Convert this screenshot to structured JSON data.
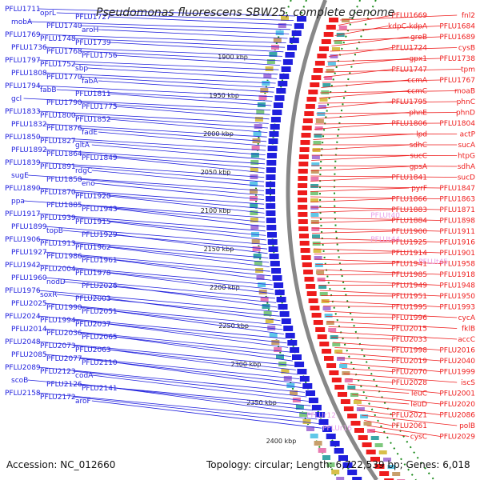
{
  "title": "Pseudomonas fluorescens SBW25, complete genome",
  "footer": {
    "accession": "Accession: NC_012660",
    "summary": "Topology: circular; Length: 6,722,539 bp; Genes: 6,018"
  },
  "colors": {
    "minus_strand": "#1f1fdd",
    "plus_strand": "#ee1c1c",
    "rna": "#e8a0e8",
    "backbone": "#888888",
    "dotted": "#1a8a1a"
  },
  "scale_ticks": [
    "1900 kbp",
    "1950 kbp",
    "2000 kbp",
    "2050 kbp",
    "2100 kbp",
    "2150 kbp",
    "2200 kbp",
    "2250 kbp",
    "2300 kbp",
    "2350 kbp",
    "2400 kbp"
  ],
  "left_labels": [
    "PFLU1711",
    "oprL",
    "PFLU1727",
    "mobA",
    "PFLU1740",
    "aroH",
    "PFLU1769",
    "PFLU1748",
    "PFLU1739",
    "PFLU1736",
    "PFLU1768",
    "PFLU1756",
    "PFLU1797",
    "PFLU1752",
    "sbp",
    "PFLU1808",
    "PFLU1770",
    "fabA",
    "PFLU1794",
    "fabB",
    "PFLU1811",
    "gcl",
    "PFLU1790",
    "PFLU1775",
    "PFLU1833",
    "PFLU1800",
    "PFLU1852",
    "PFLU1832",
    "PFLU1876",
    "fadE",
    "PFLU1850",
    "PFLU1827",
    "gltA",
    "PFLU1892",
    "PFLU1864",
    "PFLU1849",
    "PFLU1839",
    "PFLU1891",
    "rdgC",
    "sugE",
    "PFLU1858",
    "eno",
    "PFLU1890",
    "PFLU1870",
    "PFLU1920",
    "ppa",
    "PFLU1885",
    "PFLU1943",
    "PFLU1917",
    "PFLU1939",
    "PFLU1915",
    "PFLU1899",
    "topB",
    "PFLU1929",
    "PFLU1906",
    "PFLU1913",
    "PFLU1962",
    "PFLU1927",
    "PFLU1986",
    "PFLU1961",
    "PFLU1942",
    "PFLU2004",
    "PFLU1978",
    "PFLU1960",
    "nodD",
    "PFLU2026",
    "PFLU1976",
    "soxR",
    "PFLU2003",
    "PFLU2025",
    "PFLU1990",
    "PFLU2051",
    "PFLU2024",
    "PFLU1994",
    "PFLU2037",
    "PFLU2014",
    "PFLU2036",
    "PFLU2065",
    "PFLU2048",
    "PFLU2073",
    "PFLU2063",
    "PFLU2085",
    "PFLU2077",
    "PFLU2110",
    "PFLU2089",
    "PFLU2123",
    "codA",
    "scoB",
    "PFLU2126",
    "PFLU2141",
    "PFLU2158",
    "PFLU2172",
    "aroF"
  ],
  "right_labels": [
    "fnl2",
    "PFLU1669",
    "PFLU1684",
    "kdpC-kdpA",
    "PFLU1689",
    "greB",
    "cysB",
    "PFLU1724",
    "PFLU1738",
    "gpx1",
    "tpm",
    "PFLU1747",
    "PFLU1767",
    "ccmA",
    "moaB",
    "ccmC",
    "phnC",
    "PFLU1795",
    "phnD",
    "phnE",
    "PFLU1804",
    "PFLU1806",
    "actP",
    "lpd",
    "sucA",
    "sdhC",
    "htpG",
    "sucC",
    "sdhA",
    "gpsA",
    "sucD",
    "PFLU1841",
    "PFLU1847",
    "pyrF",
    "PFLU1863",
    "PFLU1866",
    "PFLU1871",
    "PFLU1883",
    "PFLU1898",
    "PFLU1884",
    "PFLU1911",
    "PFLU1900",
    "PFLU1916",
    "PFLU1925",
    "PFLU1901",
    "PFLU1914",
    "PFLU1958",
    "PFLU1941",
    "PFLU1918",
    "PFLU1985",
    "PFLU1948",
    "PFLU1949",
    "PFLU1950",
    "PFLU1951",
    "PFLU1993",
    "PFLU1995",
    "cycA",
    "PFLU1996",
    "fklB",
    "PFLU2015",
    "accC",
    "PFLU2033",
    "PFLU2016",
    "PFLU1998",
    "PFLU2040",
    "PFLU2019",
    "PFLU1999",
    "PFLU2070",
    "iscS",
    "PFLU2028",
    "PFLU2001",
    "leuC",
    "PFLU2020",
    "leuD",
    "PFLU2086",
    "PFLU2021",
    "polB",
    "PFLU2061",
    "PFLU2029",
    "cysC"
  ],
  "rna_labels": [
    "PFLUt40",
    "PFLUt44",
    "PFLUt45",
    "PFLUr12",
    "PFLUr16"
  ]
}
